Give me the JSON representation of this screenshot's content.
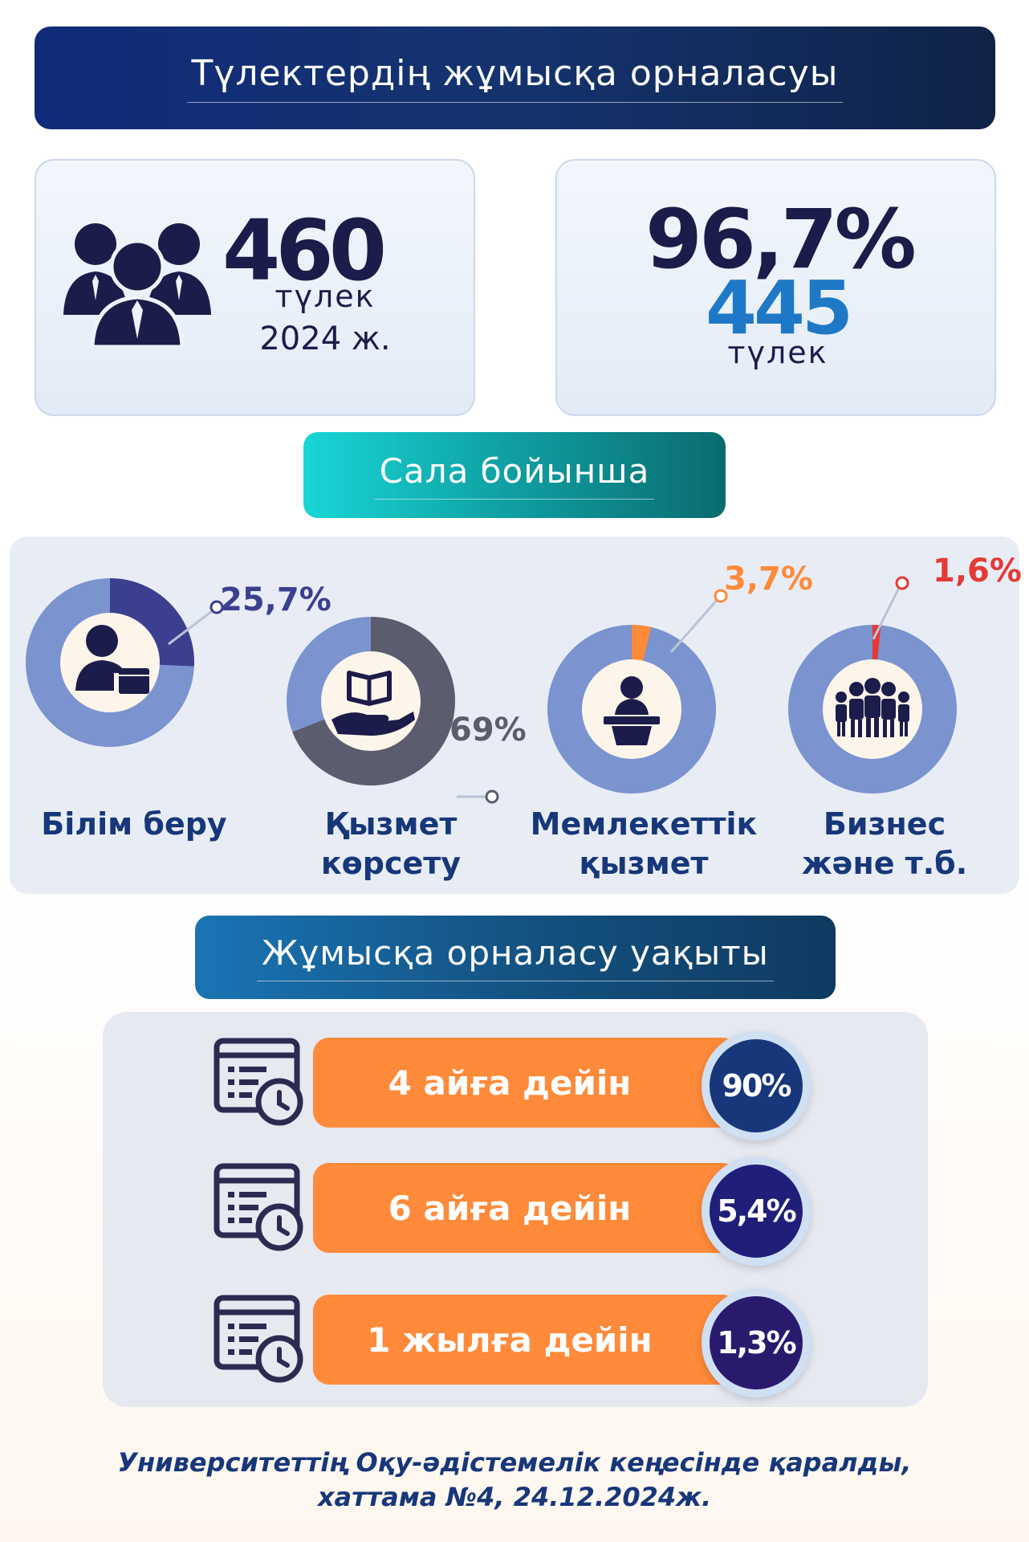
{
  "header": {
    "title": "Түлектердің жұмысқа орналасуы"
  },
  "graduates": {
    "count": "460",
    "label": "түлек",
    "year": "2024 ж."
  },
  "employed": {
    "percent": "96,7%",
    "count": "445",
    "label": "түлек"
  },
  "sector_section": {
    "title": "Сала бойынша"
  },
  "sectors": [
    {
      "name_line1": "Білім беру",
      "name_line2": "",
      "percent_label": "25,7%",
      "value": 25.7,
      "color": "#3b3f8f",
      "icon": "teacher-icon"
    },
    {
      "name_line1": "Қызмет",
      "name_line2": "көрсету",
      "percent_label": "69%",
      "value": 69,
      "color": "#5b5c6e",
      "icon": "book-hand-icon"
    },
    {
      "name_line1": "Мемлекеттік",
      "name_line2": "қызмет",
      "percent_label": "3,7%",
      "value": 3.7,
      "color": "#ff8a3a",
      "icon": "speaker-podium-icon"
    },
    {
      "name_line1": "Бизнес",
      "name_line2": "және т.б.",
      "percent_label": "1,6%",
      "value": 1.6,
      "color": "#e53935",
      "icon": "business-people-icon"
    }
  ],
  "time_section": {
    "title": "Жұмысқа орналасу уақыты"
  },
  "time_rows": [
    {
      "label": "4 айға дейін",
      "percent": "90%",
      "badge_color": "#17377a"
    },
    {
      "label": "6 айға дейін",
      "percent": "5,4%",
      "badge_color": "#1f1f7a"
    },
    {
      "label": "1 жылға дейін",
      "percent": "1,3%",
      "badge_color": "#2a1a6e"
    }
  ],
  "footer": {
    "line1": "Университеттің Оқу-әдістемелік кеңесінде қаралды,",
    "line2": "хаттама №4, 24.12.2024ж."
  },
  "colors": {
    "donut_base": "#7b93cf",
    "donut_inner": "#fdf5ea",
    "icon_dark": "#1c1c4a"
  }
}
